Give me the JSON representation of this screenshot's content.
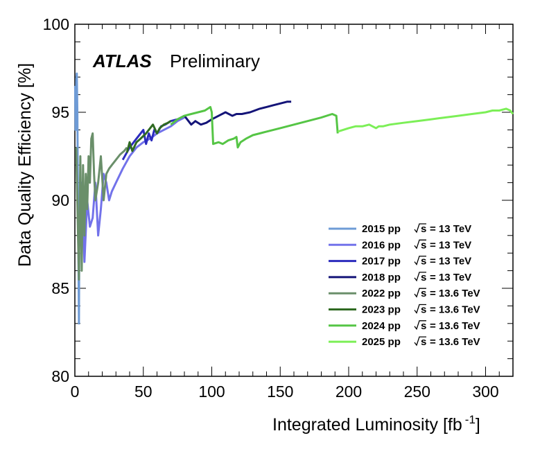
{
  "chart_data": {
    "type": "line",
    "experiment": "ATLAS",
    "status": "Preliminary",
    "xlabel": "Integrated Luminosity [fb",
    "xlabel_sup": "-1",
    "xlabel_close": "]",
    "ylabel": "Data Quality Efficiency [%]",
    "xlim": [
      0,
      320
    ],
    "ylim": [
      80,
      100
    ],
    "xticks": [
      0,
      50,
      100,
      150,
      200,
      250,
      300
    ],
    "yticks": [
      80,
      85,
      90,
      95,
      100
    ],
    "legend_position": "lower-right",
    "grid": false,
    "series": [
      {
        "label": "2015 pp",
        "energy": "= 13 TeV",
        "color": "#6e9bd6",
        "x": [
          0.2,
          0.5,
          1.0,
          1.4,
          1.8,
          2.2,
          2.6,
          3.0,
          3.2
        ],
        "y": [
          96.5,
          94.0,
          96.8,
          97.2,
          95.0,
          91.0,
          87.0,
          83.0,
          87.0
        ]
      },
      {
        "label": "2016 pp",
        "energy": "= 13 TeV",
        "color": "#7272ea",
        "x": [
          3.2,
          5,
          7,
          9,
          11,
          13,
          15,
          17,
          19,
          21,
          23,
          25,
          27,
          30,
          35,
          40,
          45,
          50,
          55,
          60,
          65,
          70,
          75,
          80
        ],
        "y": [
          88.0,
          91.0,
          86.5,
          90.0,
          88.5,
          89.0,
          91.0,
          88.0,
          89.5,
          91.5,
          91.0,
          90.0,
          90.5,
          91.0,
          91.8,
          92.5,
          93.0,
          93.3,
          93.5,
          93.8,
          94.0,
          94.2,
          94.5,
          94.7
        ]
      },
      {
        "label": "2017 pp",
        "energy": "= 13 TeV",
        "color": "#2b2bbd",
        "x": [
          35,
          40,
          45,
          50,
          52,
          54,
          56,
          58,
          60,
          63,
          66,
          70,
          75,
          80
        ],
        "y": [
          92.3,
          93.0,
          93.5,
          94.0,
          93.2,
          93.8,
          93.4,
          94.0,
          93.8,
          94.2,
          94.3,
          94.5,
          94.6,
          94.8
        ]
      },
      {
        "label": "2018 pp",
        "energy": "= 13 TeV",
        "color": "#141478",
        "x": [
          80,
          85,
          88,
          92,
          96,
          100,
          105,
          110,
          115,
          118,
          122,
          128,
          135,
          140,
          145,
          150,
          155,
          158
        ],
        "y": [
          94.8,
          94.3,
          94.5,
          94.3,
          94.4,
          94.6,
          94.8,
          95.0,
          94.8,
          94.9,
          94.9,
          95.0,
          95.2,
          95.3,
          95.4,
          95.5,
          95.6,
          95.6
        ]
      },
      {
        "label": "2022 pp",
        "energy": "= 13.6 TeV",
        "color": "#6a8f6a",
        "x": [
          1.0,
          2.0,
          3.0,
          4.0,
          5.0,
          6.0,
          7.0,
          8.0,
          9.0,
          10.0,
          11.0,
          12.0,
          13.0,
          14.0,
          15.0,
          17.0,
          19.0,
          21.0,
          23.0,
          25.0,
          27.0,
          30.0,
          33.0,
          36.0,
          38.0
        ],
        "y": [
          93.0,
          89.0,
          85.5,
          92.5,
          86.0,
          92.0,
          88.0,
          91.5,
          89.5,
          92.5,
          91.0,
          93.5,
          93.8,
          91.5,
          90.0,
          91.0,
          92.5,
          90.0,
          91.5,
          91.8,
          92.0,
          92.3,
          92.6,
          92.8,
          93.0
        ]
      },
      {
        "label": "2023 pp",
        "energy": "= 13.6 TeV",
        "color": "#2f6a22",
        "x": [
          38,
          40,
          42,
          45,
          48,
          52,
          55,
          57,
          60,
          62,
          65,
          68,
          70
        ],
        "y": [
          92.7,
          93.3,
          92.8,
          93.3,
          93.5,
          93.8,
          94.1,
          94.3,
          93.8,
          94.1,
          94.3,
          94.4,
          94.5
        ]
      },
      {
        "label": "2024 pp",
        "energy": "= 13.6 TeV",
        "color": "#55c545",
        "x": [
          70,
          75,
          80,
          85,
          90,
          95,
          99,
          100,
          101,
          105,
          108,
          112,
          116,
          118,
          119,
          121,
          125,
          130,
          135,
          140,
          145,
          150,
          160,
          170,
          180,
          188,
          191,
          192
        ],
        "y": [
          94.3,
          94.6,
          94.8,
          94.9,
          95.0,
          95.1,
          95.3,
          95.0,
          93.2,
          93.3,
          93.2,
          93.4,
          93.5,
          93.6,
          93.0,
          93.3,
          93.5,
          93.7,
          93.8,
          93.9,
          94.0,
          94.1,
          94.3,
          94.5,
          94.7,
          94.9,
          94.8,
          93.8
        ]
      },
      {
        "label": "2025 pp",
        "energy": "= 13.6 TeV",
        "color": "#7cef57",
        "x": [
          192,
          196,
          200,
          205,
          210,
          215,
          220,
          222,
          225,
          230,
          240,
          250,
          260,
          270,
          280,
          290,
          300,
          305,
          310,
          315,
          318,
          320
        ],
        "y": [
          93.9,
          94.0,
          94.1,
          94.2,
          94.2,
          94.3,
          94.1,
          94.2,
          94.2,
          94.3,
          94.4,
          94.5,
          94.6,
          94.7,
          94.8,
          94.9,
          95.0,
          95.1,
          95.1,
          95.2,
          95.1,
          94.9
        ]
      }
    ]
  }
}
